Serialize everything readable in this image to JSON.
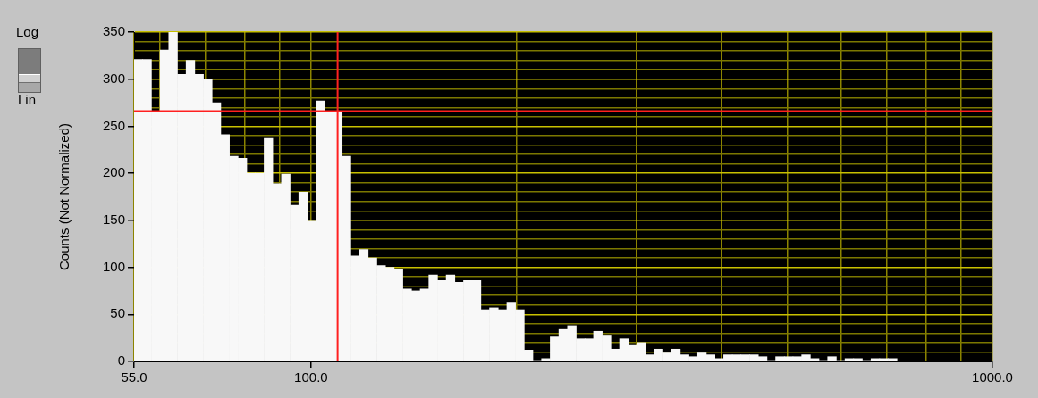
{
  "chart_data": {
    "type": "histogram",
    "ylabel": "Counts (Not Normalized)",
    "annotations": [
      "Log",
      "Lin"
    ],
    "bins": [
      55.0,
      56.64,
      58.32,
      60.05,
      61.84,
      63.68,
      65.57,
      67.52,
      69.53,
      71.59,
      73.72,
      75.91,
      78.17,
      80.49,
      82.88,
      85.35,
      87.88,
      90.5,
      93.19,
      95.96,
      98.81,
      101.75,
      104.78,
      107.89,
      111.1,
      114.4,
      117.8,
      121.3,
      124.91,
      128.62,
      132.45,
      136.39,
      140.44,
      144.62,
      148.92,
      153.34,
      157.9,
      162.6,
      167.43,
      172.41,
      177.53,
      182.81,
      188.25,
      193.84,
      199.61,
      205.54,
      211.65,
      217.94,
      224.42,
      231.09,
      237.96,
      245.04,
      252.33,
      259.83,
      267.55,
      275.51,
      283.7,
      292.13,
      300.82,
      309.76,
      318.97,
      328.45,
      338.22,
      348.27,
      358.62,
      369.28,
      380.26,
      391.57,
      403.21,
      415.19,
      427.6,
      440.3,
      453.4,
      466.9,
      480.7,
      495.0,
      509.7,
      524.9,
      540.5,
      556.5,
      573.1,
      590.1,
      607.7,
      625.7,
      644.3,
      663.5,
      683.2,
      703.5,
      724.4
    ],
    "values": [
      321,
      321,
      265,
      331,
      350,
      305,
      320,
      305,
      300,
      275,
      241,
      218,
      216,
      200,
      200,
      237,
      189,
      199,
      166,
      180,
      149,
      277,
      265,
      265,
      218,
      112,
      119,
      110,
      102,
      100,
      98,
      77,
      75,
      77,
      92,
      86,
      92,
      84,
      86,
      86,
      55,
      57,
      55,
      63,
      55,
      12,
      1,
      3,
      26,
      34,
      38,
      24,
      24,
      32,
      28,
      13,
      24,
      17,
      20,
      7,
      13,
      9,
      13,
      7,
      5,
      9,
      7,
      3,
      7,
      7,
      7,
      7,
      5,
      1,
      5,
      5,
      5,
      7,
      3,
      1,
      5,
      1,
      3,
      3,
      1,
      3,
      3,
      3
    ],
    "color": "#f8f8f8",
    "log": "x",
    "xlim": [
      55,
      1000
    ],
    "xticks": [
      {
        "value": 55,
        "label": "55.0"
      },
      {
        "value": 60,
        "label": null
      },
      {
        "value": 70,
        "label": null
      },
      {
        "value": 80,
        "label": null
      },
      {
        "value": 90,
        "label": null
      },
      {
        "value": 100,
        "label": "100.0"
      },
      {
        "value": 200,
        "label": null
      },
      {
        "value": 300,
        "label": null
      },
      {
        "value": 400,
        "label": null
      },
      {
        "value": 500,
        "label": null
      },
      {
        "value": 600,
        "label": null
      },
      {
        "value": 700,
        "label": null
      },
      {
        "value": 800,
        "label": null
      },
      {
        "value": 900,
        "label": null
      },
      {
        "value": 1000,
        "label": "1000.0"
      }
    ],
    "ylim": [
      0,
      350
    ],
    "yticks": [
      0,
      {
        "value": 10,
        "label": null
      },
      {
        "value": 20,
        "label": null
      },
      {
        "value": 30,
        "label": null
      },
      {
        "value": 40,
        "label": null
      },
      50,
      {
        "value": 60,
        "label": null
      },
      {
        "value": 70,
        "label": null
      },
      {
        "value": 80,
        "label": null
      },
      {
        "value": 90,
        "label": null
      },
      100,
      {
        "value": 110,
        "label": null
      },
      {
        "value": 120,
        "label": null
      },
      {
        "value": 130,
        "label": null
      },
      {
        "value": 140,
        "label": null
      },
      150,
      {
        "value": 160,
        "label": null
      },
      {
        "value": 170,
        "label": null
      },
      {
        "value": 180,
        "label": null
      },
      {
        "value": 190,
        "label": null
      },
      200,
      {
        "value": 210,
        "label": null
      },
      {
        "value": 220,
        "label": null
      },
      {
        "value": 230,
        "label": null
      },
      {
        "value": 240,
        "label": null
      },
      250,
      {
        "value": 260,
        "label": null
      },
      {
        "value": 270,
        "label": null
      },
      {
        "value": 280,
        "label": null
      },
      {
        "value": 290,
        "label": null
      },
      300,
      {
        "value": 310,
        "label": null
      },
      {
        "value": 320,
        "label": null
      },
      {
        "value": 330,
        "label": null
      },
      {
        "value": 340,
        "label": null
      },
      350
    ],
    "grid": true,
    "legend": false,
    "ref_lines": [
      {
        "axis": "x",
        "value": 109.4,
        "color": "#ff2020"
      },
      {
        "axis": "y",
        "value": 266,
        "color": "#ff2020"
      }
    ]
  }
}
